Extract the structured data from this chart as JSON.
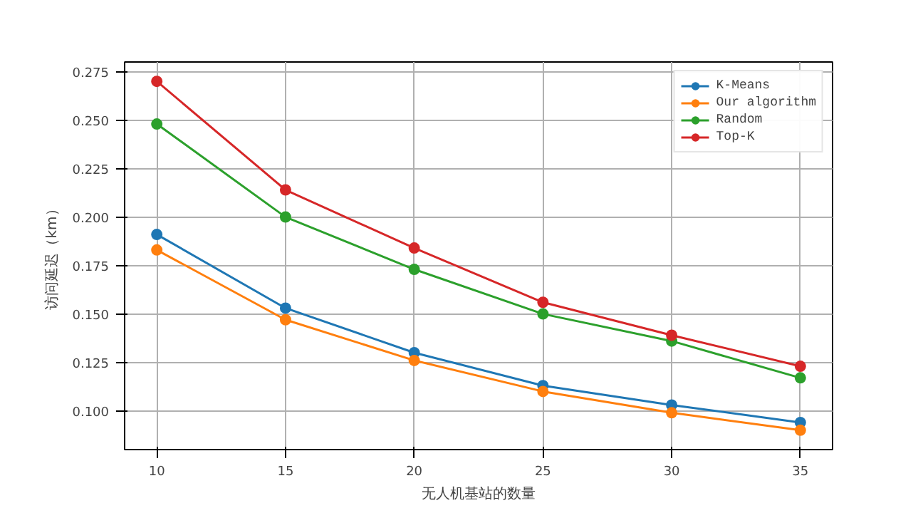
{
  "chart_data": {
    "type": "line",
    "xlabel": "无人机基站的数量",
    "ylabel": "访问延迟（km）",
    "x": [
      10,
      15,
      20,
      25,
      30,
      35
    ],
    "series": [
      {
        "name": "K-Means",
        "color": "#1f77b4",
        "values": [
          0.191,
          0.153,
          0.13,
          0.113,
          0.103,
          0.094
        ]
      },
      {
        "name": "Our algorithm",
        "color": "#ff7f0e",
        "values": [
          0.183,
          0.147,
          0.126,
          0.11,
          0.099,
          0.09
        ]
      },
      {
        "name": "Random",
        "color": "#2ca02c",
        "values": [
          0.248,
          0.2,
          0.173,
          0.15,
          0.136,
          0.117
        ]
      },
      {
        "name": "Top-K",
        "color": "#d62728",
        "values": [
          0.27,
          0.214,
          0.184,
          0.156,
          0.139,
          0.123
        ]
      }
    ],
    "xlim": [
      8.75,
      36.25
    ],
    "ylim": [
      0.08,
      0.28
    ],
    "xticks": [
      10,
      15,
      20,
      25,
      30,
      35
    ],
    "yticks": [
      {
        "value": 0.1,
        "label": "0.100"
      },
      {
        "value": 0.125,
        "label": "0.125"
      },
      {
        "value": 0.15,
        "label": "0.150"
      },
      {
        "value": 0.175,
        "label": "0.175"
      },
      {
        "value": 0.2,
        "label": "0.200"
      },
      {
        "value": 0.225,
        "label": "0.225"
      },
      {
        "value": 0.25,
        "label": "0.250"
      },
      {
        "value": 0.275,
        "label": "0.275"
      }
    ],
    "grid": true,
    "legend": "top right",
    "marker": "circle",
    "line_style": "solid"
  }
}
